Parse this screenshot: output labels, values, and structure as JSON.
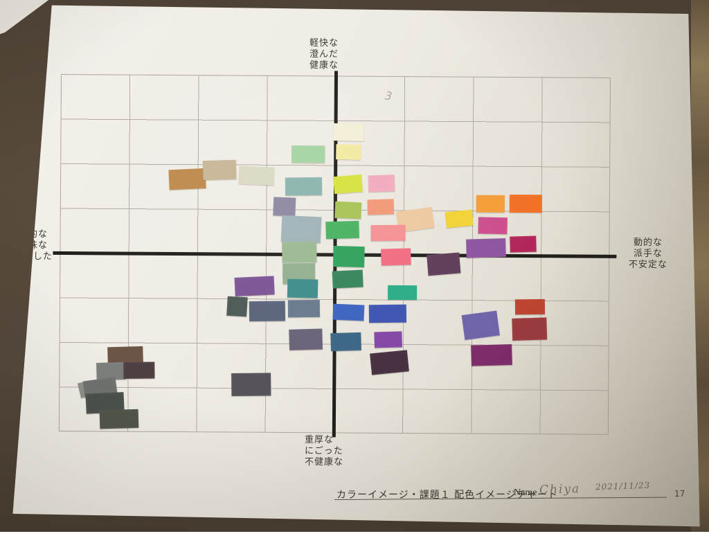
{
  "axis_labels": {
    "top": [
      "軽快な",
      "澄んだ",
      "健康な"
    ],
    "bottom": [
      "重厚な",
      "にごった",
      "不健康な"
    ],
    "left": [
      "静的な",
      "地味な",
      "安定した"
    ],
    "right": [
      "動的な",
      "派手な",
      "不安定な"
    ]
  },
  "footer": {
    "caption": "カラーイメージ・課題１ 配色イメージチャート",
    "name_label": "Name",
    "name_value": "Chiya",
    "date": "2021/11/23",
    "page_number": "17"
  },
  "annotations": {
    "pencil_mark": "3"
  },
  "colors": {
    "paper": "#EFECE5",
    "wood_desk": "#54463A",
    "grid_line": "#B2AB9F",
    "axis_line": "#211F1B"
  },
  "chart_data": {
    "type": "scatter",
    "title": "配色イメージチャート",
    "x_axis": {
      "negative_label": "静的な 地味な 安定した",
      "positive_label": "動的な 派手な 不安定な",
      "range": [
        -4,
        4
      ]
    },
    "y_axis": {
      "positive_label": "軽快な 澄んだ 健康な",
      "negative_label": "重厚な にごった 不健康な",
      "range": [
        -4,
        4
      ]
    },
    "grid": "8x8 cells, bold center axes",
    "points": [
      {
        "name": "camel-brown",
        "color": "#BE8A4B",
        "x": -2.2,
        "y": 1.7,
        "px": [
          245,
          243,
          53,
          29,
          -3
        ]
      },
      {
        "name": "tan-beige",
        "color": "#C8B697",
        "x": -1.7,
        "y": 1.9,
        "px": [
          294,
          230,
          48,
          28,
          -2
        ]
      },
      {
        "name": "pale-sage",
        "color": "#DAD9C3",
        "x": -1.1,
        "y": 1.8,
        "px": [
          346,
          239,
          51,
          26,
          2
        ]
      },
      {
        "name": "light-green",
        "color": "#A5D4A2",
        "x": -0.4,
        "y": 2.2,
        "px": [
          422,
          208,
          48,
          25,
          0
        ]
      },
      {
        "name": "cream",
        "color": "#F4EFD6",
        "x": 0.2,
        "y": 2.7,
        "px": [
          482,
          176,
          44,
          25,
          1
        ]
      },
      {
        "name": "pale-yellow",
        "color": "#F3EAA1",
        "x": 0.2,
        "y": 2.3,
        "px": [
          486,
          206,
          36,
          22,
          1
        ]
      },
      {
        "name": "gray-teal",
        "color": "#8BB3AD",
        "x": -0.5,
        "y": 1.5,
        "px": [
          413,
          254,
          53,
          26,
          -1
        ]
      },
      {
        "name": "chartreuse",
        "color": "#D6E23E",
        "x": 0.2,
        "y": 1.6,
        "px": [
          483,
          251,
          41,
          25,
          -5
        ]
      },
      {
        "name": "light-pink",
        "color": "#F3AABD",
        "x": 0.7,
        "y": 1.6,
        "px": [
          533,
          250,
          38,
          24,
          -2
        ]
      },
      {
        "name": "gray-violet",
        "color": "#8D86A1",
        "x": -0.7,
        "y": 1.1,
        "px": [
          396,
          283,
          32,
          27,
          2
        ]
      },
      {
        "name": "blue-gray",
        "color": "#9FB2B5",
        "x": -0.5,
        "y": 0.6,
        "px": [
          408,
          310,
          57,
          38,
          2
        ]
      },
      {
        "name": "lime-green",
        "color": "#A7C354",
        "x": 0.2,
        "y": 1.0,
        "px": [
          485,
          289,
          38,
          24,
          2
        ]
      },
      {
        "name": "salmon",
        "color": "#F29877",
        "x": 0.7,
        "y": 1.1,
        "px": [
          532,
          285,
          38,
          22,
          -2
        ]
      },
      {
        "name": "peach",
        "color": "#EEC9A0",
        "x": 1.2,
        "y": 0.8,
        "px": [
          575,
          299,
          52,
          30,
          -8
        ]
      },
      {
        "name": "golden-yellow",
        "color": "#F2D234",
        "x": 1.8,
        "y": 0.8,
        "px": [
          645,
          301,
          39,
          23,
          -6
        ]
      },
      {
        "name": "light-orange",
        "color": "#F49D39",
        "x": 2.3,
        "y": 1.2,
        "px": [
          689,
          278,
          41,
          25,
          0
        ]
      },
      {
        "name": "deep-orange",
        "color": "#F27026",
        "x": 2.8,
        "y": 1.2,
        "px": [
          737,
          277,
          47,
          26,
          0
        ]
      },
      {
        "name": "magenta-pink",
        "color": "#CE4D8D",
        "x": 2.3,
        "y": 0.7,
        "px": [
          692,
          310,
          42,
          24,
          1
        ]
      },
      {
        "name": "medium-green",
        "color": "#48B15F",
        "x": 0.1,
        "y": 0.6,
        "px": [
          472,
          317,
          48,
          25,
          -2
        ]
      },
      {
        "name": "rose-pink",
        "color": "#F49092",
        "x": 0.8,
        "y": 0.5,
        "px": [
          537,
          322,
          50,
          23,
          -1
        ]
      },
      {
        "name": "raspberry",
        "color": "#B2255A",
        "x": 2.7,
        "y": 0.3,
        "px": [
          738,
          337,
          38,
          23,
          -2
        ]
      },
      {
        "name": "muted-purple",
        "color": "#8D549F",
        "x": 2.2,
        "y": 0.2,
        "px": [
          675,
          341,
          57,
          27,
          -2
        ]
      },
      {
        "name": "sage-green",
        "color": "#9BB992",
        "x": -0.5,
        "y": 0.0,
        "px": [
          409,
          347,
          50,
          30,
          -1
        ]
      },
      {
        "name": "emerald-green",
        "color": "#2EA15B",
        "x": 0.2,
        "y": 0.0,
        "px": [
          483,
          353,
          45,
          30,
          1
        ]
      },
      {
        "name": "coral-pink",
        "color": "#F26C7F",
        "x": 0.9,
        "y": 0.0,
        "px": [
          552,
          356,
          43,
          24,
          -2
        ]
      },
      {
        "name": "gray-sage",
        "color": "#93AF8E",
        "x": -0.5,
        "y": -0.4,
        "px": [
          410,
          378,
          47,
          30,
          -1
        ]
      },
      {
        "name": "dark-green",
        "color": "#35855B",
        "x": 0.2,
        "y": -0.5,
        "px": [
          482,
          388,
          44,
          25,
          -3
        ]
      },
      {
        "name": "dark-plum",
        "color": "#5E3C58",
        "x": 1.6,
        "y": -0.2,
        "px": [
          619,
          363,
          47,
          30,
          -5
        ]
      },
      {
        "name": "violet-purple",
        "color": "#7B5494",
        "x": -1.2,
        "y": -0.7,
        "px": [
          341,
          398,
          57,
          27,
          -3
        ]
      },
      {
        "name": "teal",
        "color": "#3D8B8B",
        "x": -0.5,
        "y": -0.8,
        "px": [
          417,
          401,
          44,
          27,
          1
        ]
      },
      {
        "name": "emerald-teal",
        "color": "#29AC86",
        "x": 1.0,
        "y": -0.9,
        "px": [
          562,
          409,
          42,
          21,
          0
        ]
      },
      {
        "name": "dark-slate-green",
        "color": "#4B5955",
        "x": -1.4,
        "y": -1.2,
        "px": [
          330,
          427,
          29,
          28,
          3
        ]
      },
      {
        "name": "slate-blue",
        "color": "#59637A",
        "x": -1.0,
        "y": -1.3,
        "px": [
          362,
          433,
          52,
          29,
          -1
        ]
      },
      {
        "name": "steel-gray-blue",
        "color": "#68798D",
        "x": -0.4,
        "y": -1.2,
        "px": [
          418,
          431,
          46,
          25,
          -1
        ]
      },
      {
        "name": "royal-blue",
        "color": "#3B63BF",
        "x": 0.2,
        "y": -1.3,
        "px": [
          483,
          437,
          45,
          23,
          2
        ]
      },
      {
        "name": "indigo-blue",
        "color": "#3C53B1",
        "x": 0.8,
        "y": -1.3,
        "px": [
          535,
          437,
          54,
          26,
          -1
        ]
      },
      {
        "name": "rust-red",
        "color": "#BC4430",
        "x": 2.8,
        "y": -1.2,
        "px": [
          746,
          428,
          43,
          22,
          -1
        ]
      },
      {
        "name": "slate-violet",
        "color": "#6F63A9",
        "x": 2.1,
        "y": -1.6,
        "px": [
          671,
          448,
          51,
          36,
          -8
        ]
      },
      {
        "name": "dark-red",
        "color": "#9A3B3E",
        "x": 2.8,
        "y": -1.6,
        "px": [
          742,
          455,
          50,
          32,
          -2
        ]
      },
      {
        "name": "dark-gray-violet",
        "color": "#696278",
        "x": -0.4,
        "y": -1.9,
        "px": [
          420,
          473,
          48,
          30,
          -2
        ]
      },
      {
        "name": "steel-blue",
        "color": "#3A6585",
        "x": 0.2,
        "y": -2.0,
        "px": [
          480,
          478,
          44,
          26,
          -2
        ]
      },
      {
        "name": "bright-purple",
        "color": "#8346A5",
        "x": 0.8,
        "y": -1.9,
        "px": [
          543,
          476,
          40,
          23,
          -2
        ]
      },
      {
        "name": "dark-magenta",
        "color": "#7E2C6A",
        "x": 2.3,
        "y": -2.2,
        "px": [
          683,
          494,
          59,
          30,
          -2
        ]
      },
      {
        "name": "dark-eggplant",
        "color": "#463040",
        "x": 0.8,
        "y": -2.4,
        "px": [
          538,
          505,
          54,
          31,
          -6
        ]
      },
      {
        "name": "dark-brown",
        "color": "#6B5345",
        "x": -3.0,
        "y": -2.3,
        "px": [
          158,
          500,
          51,
          24,
          -2
        ]
      },
      {
        "name": "medium-gray",
        "color": "#7C7F7C",
        "x": -3.2,
        "y": -2.6,
        "px": [
          142,
          523,
          42,
          25,
          -2
        ]
      },
      {
        "name": "dark-maroon-gray",
        "color": "#4E3F43",
        "x": -2.8,
        "y": -2.6,
        "px": [
          181,
          522,
          45,
          24,
          -1
        ]
      },
      {
        "name": "light-gray-edge",
        "color": "#8D8F8A",
        "x": -3.6,
        "y": -3.0,
        "px": [
          117,
          551,
          18,
          22,
          -14
        ]
      },
      {
        "name": "rotated-gray",
        "color": "#6F716E",
        "x": -3.4,
        "y": -3.0,
        "px": [
          124,
          547,
          47,
          25,
          -8
        ]
      },
      {
        "name": "dark-gray",
        "color": "#55525A",
        "x": -1.2,
        "y": -2.9,
        "px": [
          337,
          537,
          57,
          33,
          -1
        ]
      },
      {
        "name": "charcoal-green",
        "color": "#4A504B",
        "x": -3.3,
        "y": -3.3,
        "px": [
          127,
          567,
          55,
          29,
          -3
        ]
      },
      {
        "name": "charcoal-green-2",
        "color": "#505549",
        "x": -3.1,
        "y": -3.7,
        "px": [
          147,
          591,
          56,
          27,
          -2
        ]
      }
    ]
  }
}
